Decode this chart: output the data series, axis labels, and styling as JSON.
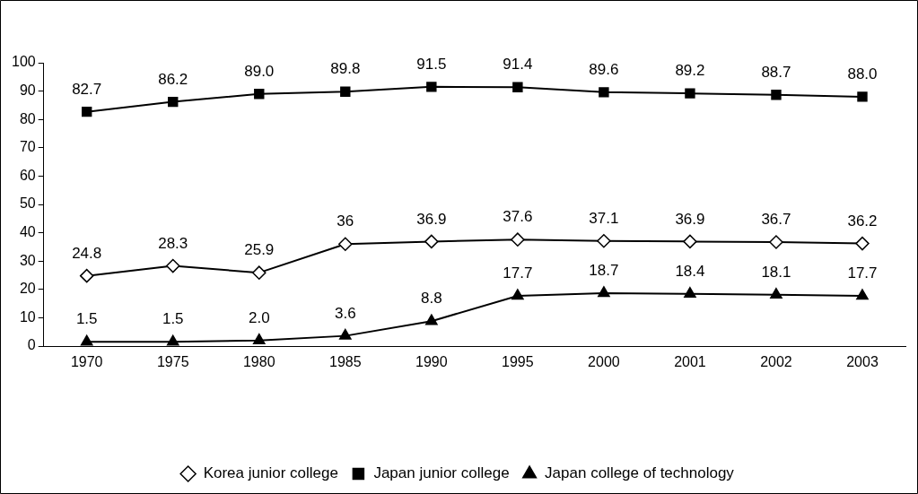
{
  "chart_data": {
    "type": "line",
    "categories": [
      "1970",
      "1975",
      "1980",
      "1985",
      "1990",
      "1995",
      "2000",
      "2001",
      "2002",
      "2003"
    ],
    "series": [
      {
        "name": "Korea junior college",
        "color": "#000000",
        "marker": "diamond",
        "values": [
          24.8,
          28.3,
          25.9,
          36,
          36.9,
          37.6,
          37.1,
          36.9,
          36.7,
          36.2
        ],
        "value_labels": [
          "24.8",
          "28.3",
          "25.9",
          "36",
          "36.9",
          "37.6",
          "37.1",
          "36.9",
          "36.7",
          "36.2"
        ]
      },
      {
        "name": "Japan junior college",
        "color": "#000000",
        "marker": "square",
        "values": [
          82.7,
          86.2,
          89.0,
          89.8,
          91.5,
          91.4,
          89.6,
          89.2,
          88.7,
          88.0
        ],
        "value_labels": [
          "82.7",
          "86.2",
          "89.0",
          "89.8",
          "91.5",
          "91.4",
          "89.6",
          "89.2",
          "88.7",
          "88.0"
        ]
      },
      {
        "name": "Japan college of technology",
        "color": "#000000",
        "marker": "triangle",
        "values": [
          1.5,
          1.5,
          2.0,
          3.6,
          8.8,
          17.7,
          18.7,
          18.4,
          18.1,
          17.7
        ],
        "value_labels": [
          "1.5",
          "1.5",
          "2.0",
          "3.6",
          "8.8",
          "17.7",
          "18.7",
          "18.4",
          "18.1",
          "17.7"
        ]
      }
    ],
    "ylim": [
      0,
      100
    ],
    "yticks": [
      0,
      10,
      20,
      30,
      40,
      50,
      60,
      70,
      80,
      90,
      100
    ],
    "grid": false,
    "legend": "bottom",
    "line_style": "solid"
  }
}
